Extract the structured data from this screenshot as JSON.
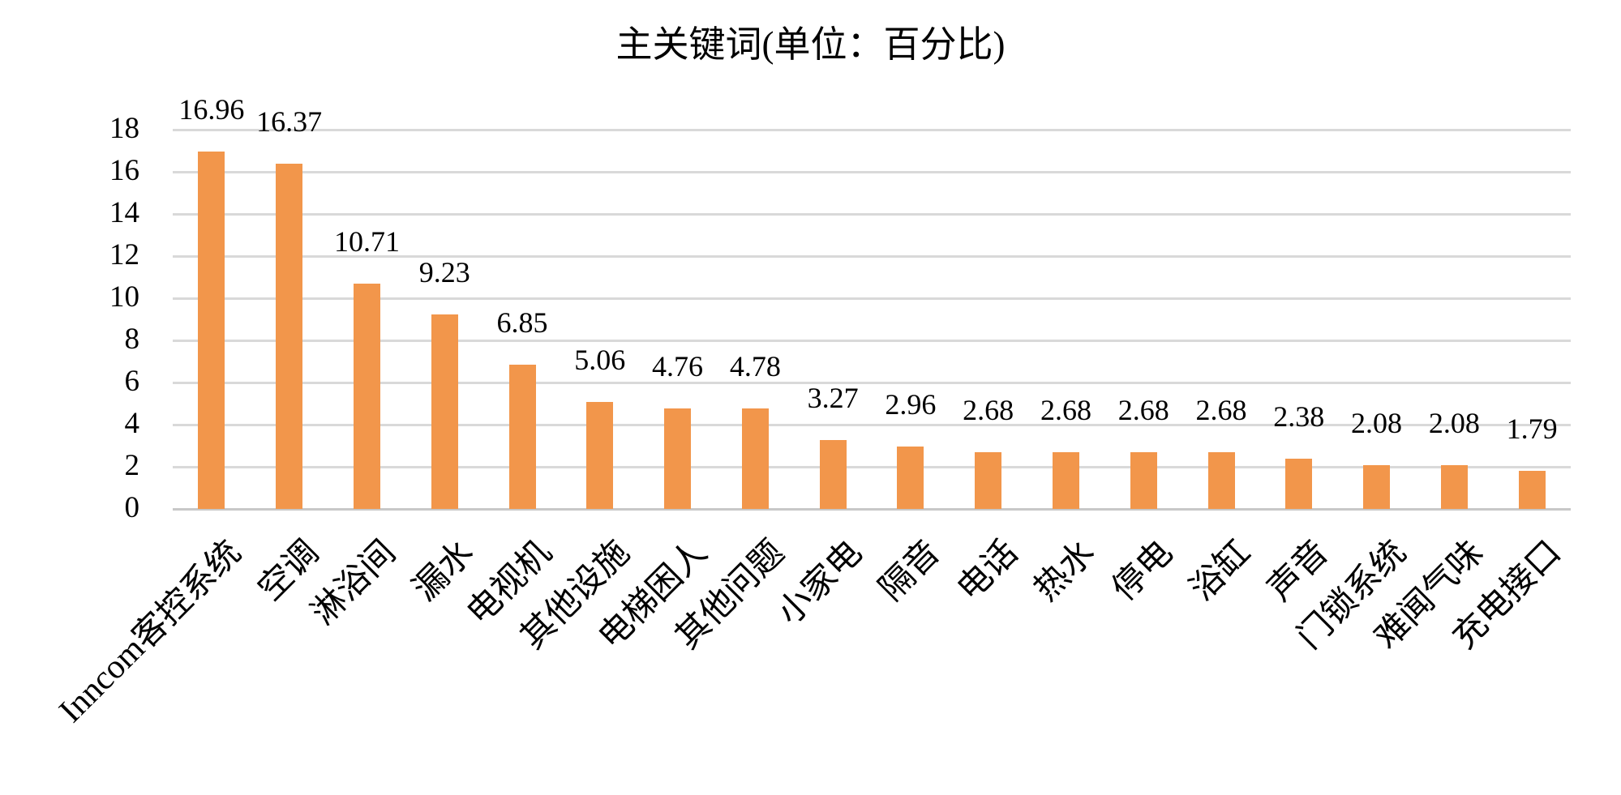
{
  "chart_data": {
    "type": "bar",
    "title": "主关键词(单位：百分比)",
    "categories": [
      "Inncom客控系统",
      "空调",
      "淋浴间",
      "漏水",
      "电视机",
      "其他设施",
      "电梯困人",
      "其他问题",
      "小家电",
      "隔音",
      "电话",
      "热水",
      "停电",
      "浴缸",
      "声音",
      "门锁系统",
      "难闻气味",
      "充电接口"
    ],
    "values": [
      16.96,
      16.37,
      10.71,
      9.23,
      6.85,
      5.06,
      4.76,
      4.78,
      3.27,
      2.96,
      2.68,
      2.68,
      2.68,
      2.68,
      2.38,
      2.08,
      2.08,
      1.79
    ],
    "value_labels": [
      "16.96",
      "16.37",
      "10.71",
      "9.23",
      "6.85",
      "5.06",
      "4.76",
      "4.78",
      "3.27",
      "2.96",
      "2.68",
      "2.68",
      "2.68",
      "2.68",
      "2.38",
      "2.08",
      "2.08",
      "1.79"
    ],
    "xlabel": "",
    "ylabel": "",
    "ylim": [
      0,
      18
    ],
    "ytick_step": 2,
    "yticks": [
      0,
      2,
      4,
      6,
      8,
      10,
      12,
      14,
      16,
      18
    ],
    "grid": true,
    "legend": false,
    "x_label_rotation_deg": -45,
    "bar_color": "#F2964B",
    "gridline_color": "#D9D9D9",
    "baseline_color": "#C8C8C8",
    "text_color": "#000000",
    "background_color": "#FFFFFF"
  }
}
